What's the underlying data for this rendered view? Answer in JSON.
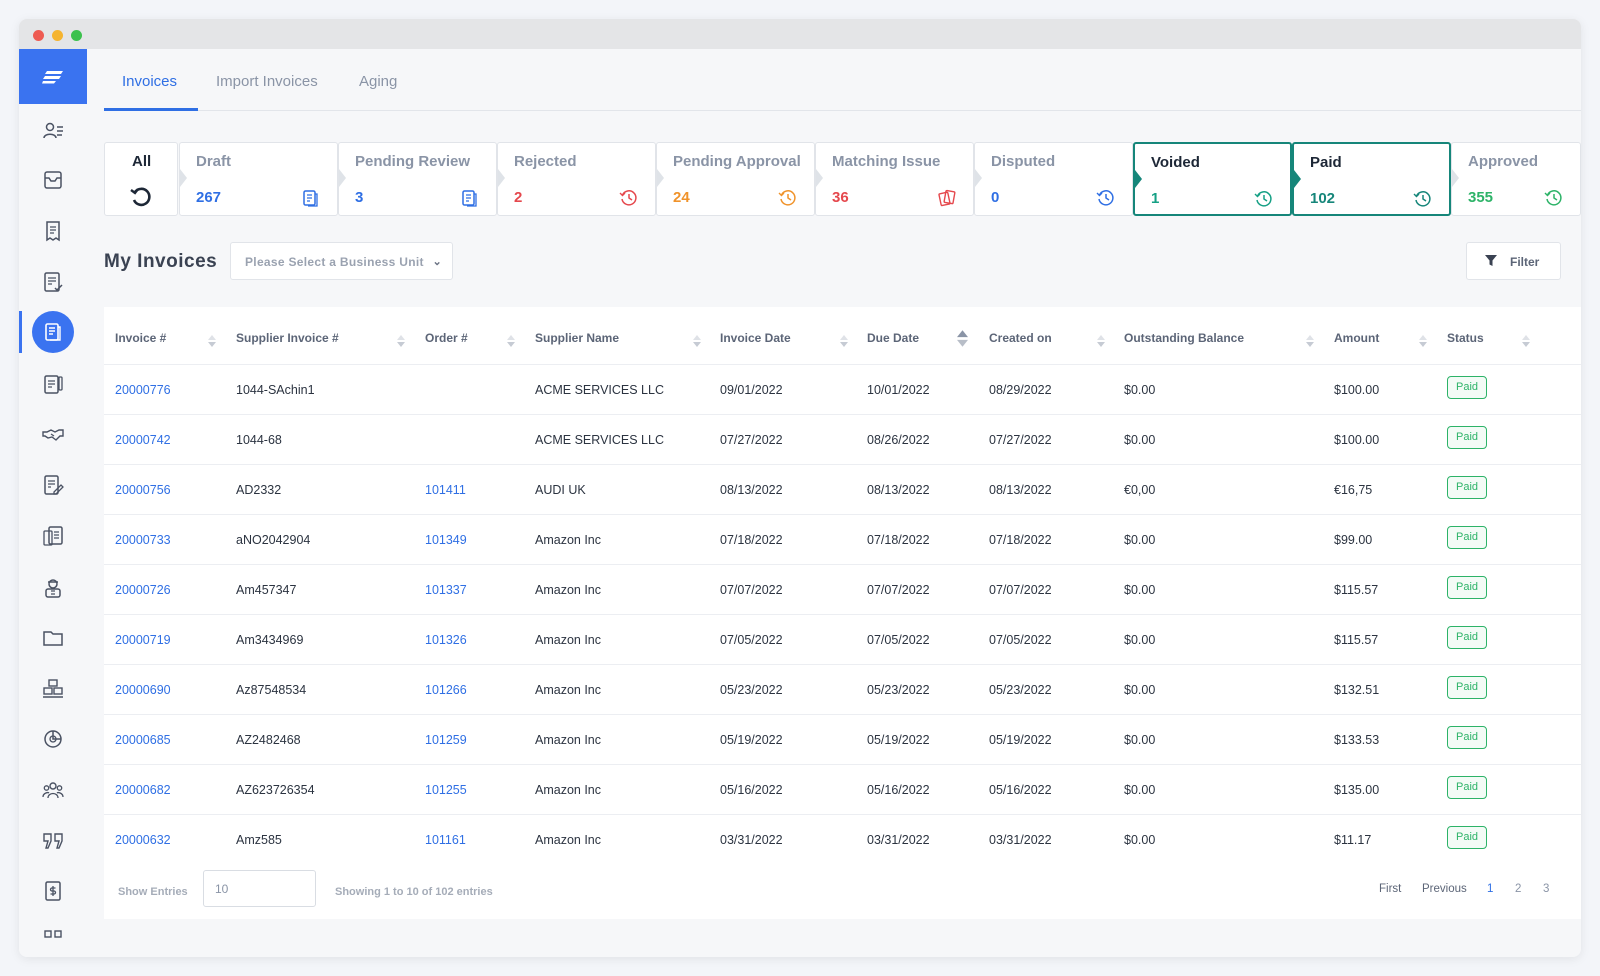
{
  "tabs": [
    {
      "label": "Invoices",
      "active": true
    },
    {
      "label": "Import Invoices",
      "active": false
    },
    {
      "label": "Aging",
      "active": false
    }
  ],
  "status_cards": [
    {
      "label": "All",
      "value": "",
      "color": "#1d2736",
      "icon": "refresh-icon"
    },
    {
      "label": "Draft",
      "value": "267",
      "color": "#2f6fe4",
      "icon": "document-icon"
    },
    {
      "label": "Pending Review",
      "value": "3",
      "color": "#2f6fe4",
      "icon": "document-icon"
    },
    {
      "label": "Rejected",
      "value": "2",
      "color": "#e5484d",
      "icon": "clock-icon"
    },
    {
      "label": "Pending Approval",
      "value": "24",
      "color": "#f0932b",
      "icon": "clock-icon"
    },
    {
      "label": "Matching Issue",
      "value": "36",
      "color": "#e5484d",
      "icon": "cards-icon"
    },
    {
      "label": "Disputed",
      "value": "0",
      "color": "#2f6fe4",
      "icon": "clock-icon"
    },
    {
      "label": "Voided",
      "value": "1",
      "color": "#16a085",
      "icon": "clock-icon",
      "selected": true
    },
    {
      "label": "Paid",
      "value": "102",
      "color": "#16867a",
      "icon": "clock-icon",
      "selected": true
    },
    {
      "label": "Approved",
      "value": "355",
      "color": "#2db368",
      "icon": "clock-icon"
    }
  ],
  "section": {
    "title": "My Invoices",
    "business_unit_placeholder": "Please Select a Business Unit",
    "filter_label": "Filter"
  },
  "table": {
    "columns": [
      "Invoice #",
      "Supplier Invoice #",
      "Order #",
      "Supplier Name",
      "Invoice Date",
      "Due Date",
      "Created on",
      "Outstanding Balance",
      "Amount",
      "Status"
    ],
    "rows": [
      [
        "20000776",
        "1044-SAchin1",
        "",
        "ACME SERVICES LLC",
        "09/01/2022",
        "10/01/2022",
        "08/29/2022",
        "$0.00",
        "$100.00",
        "Paid"
      ],
      [
        "20000742",
        "1044-68",
        "",
        "ACME SERVICES LLC",
        "07/27/2022",
        "08/26/2022",
        "07/27/2022",
        "$0.00",
        "$100.00",
        "Paid"
      ],
      [
        "20000756",
        "AD2332",
        "101411",
        "AUDI UK",
        "08/13/2022",
        "08/13/2022",
        "08/13/2022",
        "€0,00",
        "€16,75",
        "Paid"
      ],
      [
        "20000733",
        "aNO2042904",
        "101349",
        "Amazon Inc",
        "07/18/2022",
        "07/18/2022",
        "07/18/2022",
        "$0.00",
        "$99.00",
        "Paid"
      ],
      [
        "20000726",
        "Am457347",
        "101337",
        "Amazon Inc",
        "07/07/2022",
        "07/07/2022",
        "07/07/2022",
        "$0.00",
        "$115.57",
        "Paid"
      ],
      [
        "20000719",
        "Am3434969",
        "101326",
        "Amazon Inc",
        "07/05/2022",
        "07/05/2022",
        "07/05/2022",
        "$0.00",
        "$115.57",
        "Paid"
      ],
      [
        "20000690",
        "Az87548534",
        "101266",
        "Amazon Inc",
        "05/23/2022",
        "05/23/2022",
        "05/23/2022",
        "$0.00",
        "$132.51",
        "Paid"
      ],
      [
        "20000685",
        "AZ2482468",
        "101259",
        "Amazon Inc",
        "05/19/2022",
        "05/19/2022",
        "05/19/2022",
        "$0.00",
        "$133.53",
        "Paid"
      ],
      [
        "20000682",
        "AZ623726354",
        "101255",
        "Amazon Inc",
        "05/16/2022",
        "05/16/2022",
        "05/16/2022",
        "$0.00",
        "$135.00",
        "Paid"
      ],
      [
        "20000632",
        "Amz585",
        "101161",
        "Amazon Inc",
        "03/31/2022",
        "03/31/2022",
        "03/31/2022",
        "$0.00",
        "$11.17",
        "Paid"
      ]
    ]
  },
  "footer": {
    "show_entries_label": "Show Entries",
    "entries_value": "10",
    "showing_text": "Showing 1 to 10 of 102 entries",
    "pagination": {
      "first": "First",
      "previous": "Previous",
      "pages": [
        "1",
        "2",
        "3"
      ],
      "current": "1"
    }
  },
  "sidebar": {
    "icons": [
      "user-list-icon",
      "inbox-icon",
      "receipt-icon",
      "checklist-icon",
      "invoice-icon",
      "clipboard-icon",
      "handshake-icon",
      "edit-document-icon",
      "reports-icon",
      "worker-icon",
      "folder-icon",
      "boxes-icon",
      "pie-chart-icon",
      "team-icon",
      "quote-icon",
      "payment-icon",
      "grid-icon"
    ],
    "active_index": 4
  },
  "colors": {
    "accent": "#2f6fe4",
    "selected_border": "#16867a",
    "paid_badge": "#2db368"
  }
}
